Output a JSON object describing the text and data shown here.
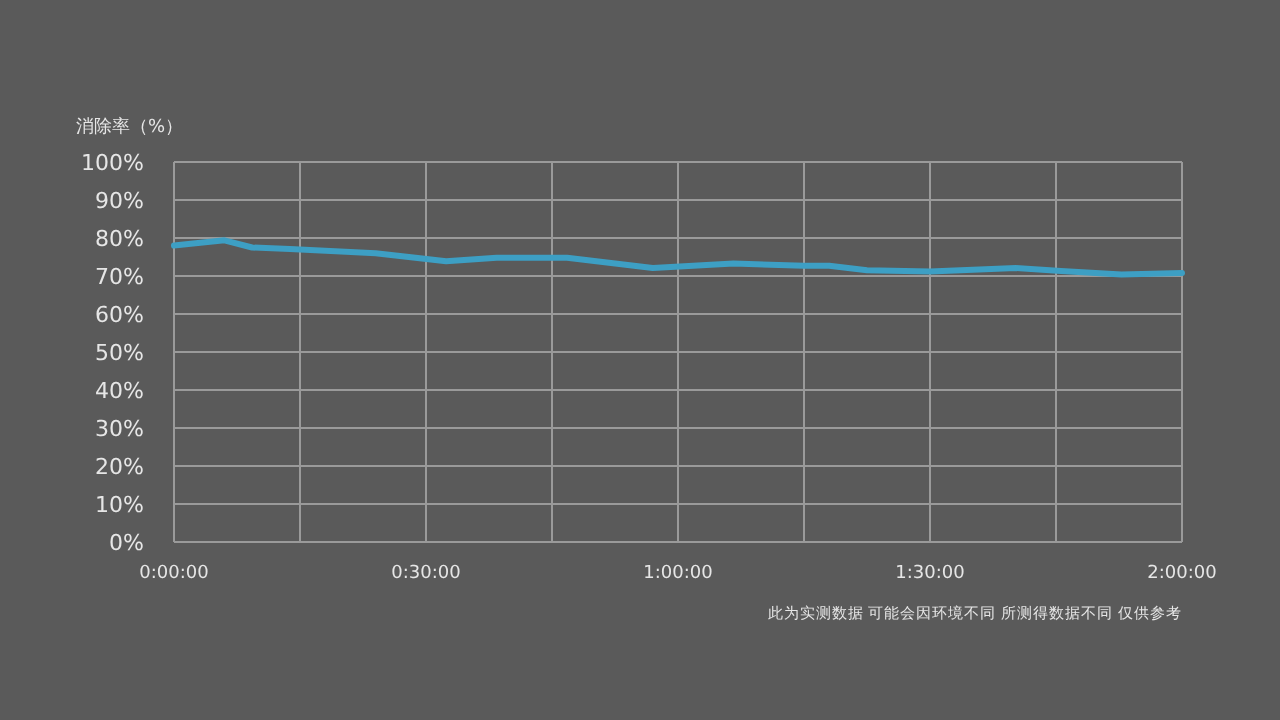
{
  "chart_data": {
    "type": "line",
    "ylabel": "消除率（%）",
    "x": [
      0,
      0.1,
      0.155,
      0.23,
      0.4,
      0.54,
      0.64,
      0.78,
      0.95,
      1.11,
      1.25,
      1.3,
      1.375,
      1.5,
      1.67,
      1.76,
      1.88,
      2.0
    ],
    "series": [
      {
        "color": "#3d9fc4",
        "values": [
          78,
          79.4,
          77.5,
          77.1,
          76,
          73.9,
          74.8,
          74.8,
          72.1,
          73.3,
          72.7,
          72.7,
          71.5,
          71.2,
          72.1,
          71.3,
          70.4,
          70.8
        ]
      }
    ],
    "xlim": [
      0,
      2
    ],
    "xticks": [
      {
        "value": 0,
        "label": "0:00:00"
      },
      {
        "value": 0.25,
        "label": null
      },
      {
        "value": 0.5,
        "label": "0:30:00"
      },
      {
        "value": 0.75,
        "label": null
      },
      {
        "value": 1,
        "label": "1:00:00"
      },
      {
        "value": 1.25,
        "label": null
      },
      {
        "value": 1.5,
        "label": "1:30:00"
      },
      {
        "value": 1.75,
        "label": null
      },
      {
        "value": 2,
        "label": "2:00:00"
      }
    ],
    "ylim": [
      0,
      100
    ],
    "yticks": [
      {
        "value": 0,
        "label": "0%"
      },
      {
        "value": 10,
        "label": "10%"
      },
      {
        "value": 20,
        "label": "20%"
      },
      {
        "value": 30,
        "label": "30%"
      },
      {
        "value": 40,
        "label": "40%"
      },
      {
        "value": 50,
        "label": "50%"
      },
      {
        "value": 60,
        "label": "60%"
      },
      {
        "value": 70,
        "label": "70%"
      },
      {
        "value": 80,
        "label": "80%"
      },
      {
        "value": 90,
        "label": "90%"
      },
      {
        "value": 100,
        "label": "100%"
      }
    ],
    "grid": true,
    "marker": "none",
    "line_style": "solid",
    "annotations": [
      "此为实测数据 可能会因环境不同 所测得数据不同 仅供参考"
    ]
  }
}
